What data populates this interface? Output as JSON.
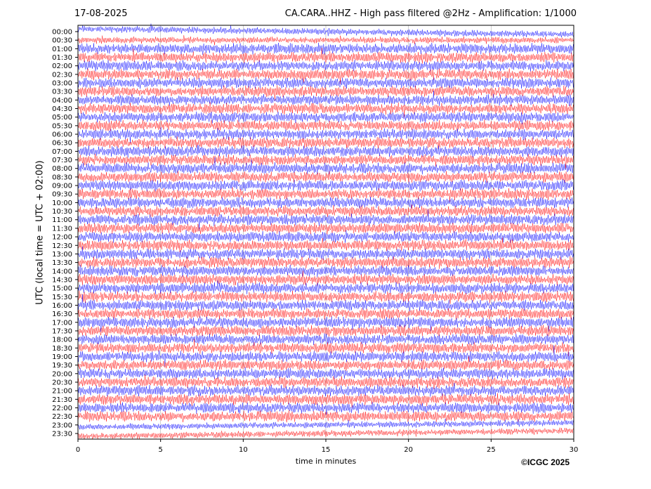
{
  "header": {
    "date": "17-08-2025",
    "title": "CA.CARA..HHZ - High pass filtered @2Hz - Amplification: 1/1000"
  },
  "footer": {
    "credit": "©ICGC 2025"
  },
  "chart_data": {
    "type": "line",
    "subtype": "helicorder",
    "xlabel": "time in minutes",
    "ylabel": "UTC (local time = UTC + 02:00)",
    "xlim": [
      0,
      30
    ],
    "x_ticks": [
      0,
      5,
      10,
      15,
      20,
      25,
      30
    ],
    "y_ticks": [
      "00:00",
      "00:30",
      "01:00",
      "01:30",
      "02:00",
      "02:30",
      "03:00",
      "03:30",
      "04:00",
      "04:30",
      "05:00",
      "05:30",
      "06:00",
      "06:30",
      "07:00",
      "07:30",
      "08:00",
      "08:30",
      "09:00",
      "09:30",
      "10:00",
      "10:30",
      "11:00",
      "11:30",
      "12:00",
      "12:30",
      "13:00",
      "13:30",
      "14:00",
      "14:30",
      "15:00",
      "15:30",
      "16:00",
      "16:30",
      "17:00",
      "17:30",
      "18:00",
      "18:30",
      "19:00",
      "19:30",
      "20:00",
      "20:30",
      "21:00",
      "21:30",
      "22:00",
      "22:30",
      "23:00",
      "23:30"
    ],
    "trace_colors": [
      "#0000ff",
      "#ff0000"
    ],
    "grid": true,
    "legend": "none"
  }
}
